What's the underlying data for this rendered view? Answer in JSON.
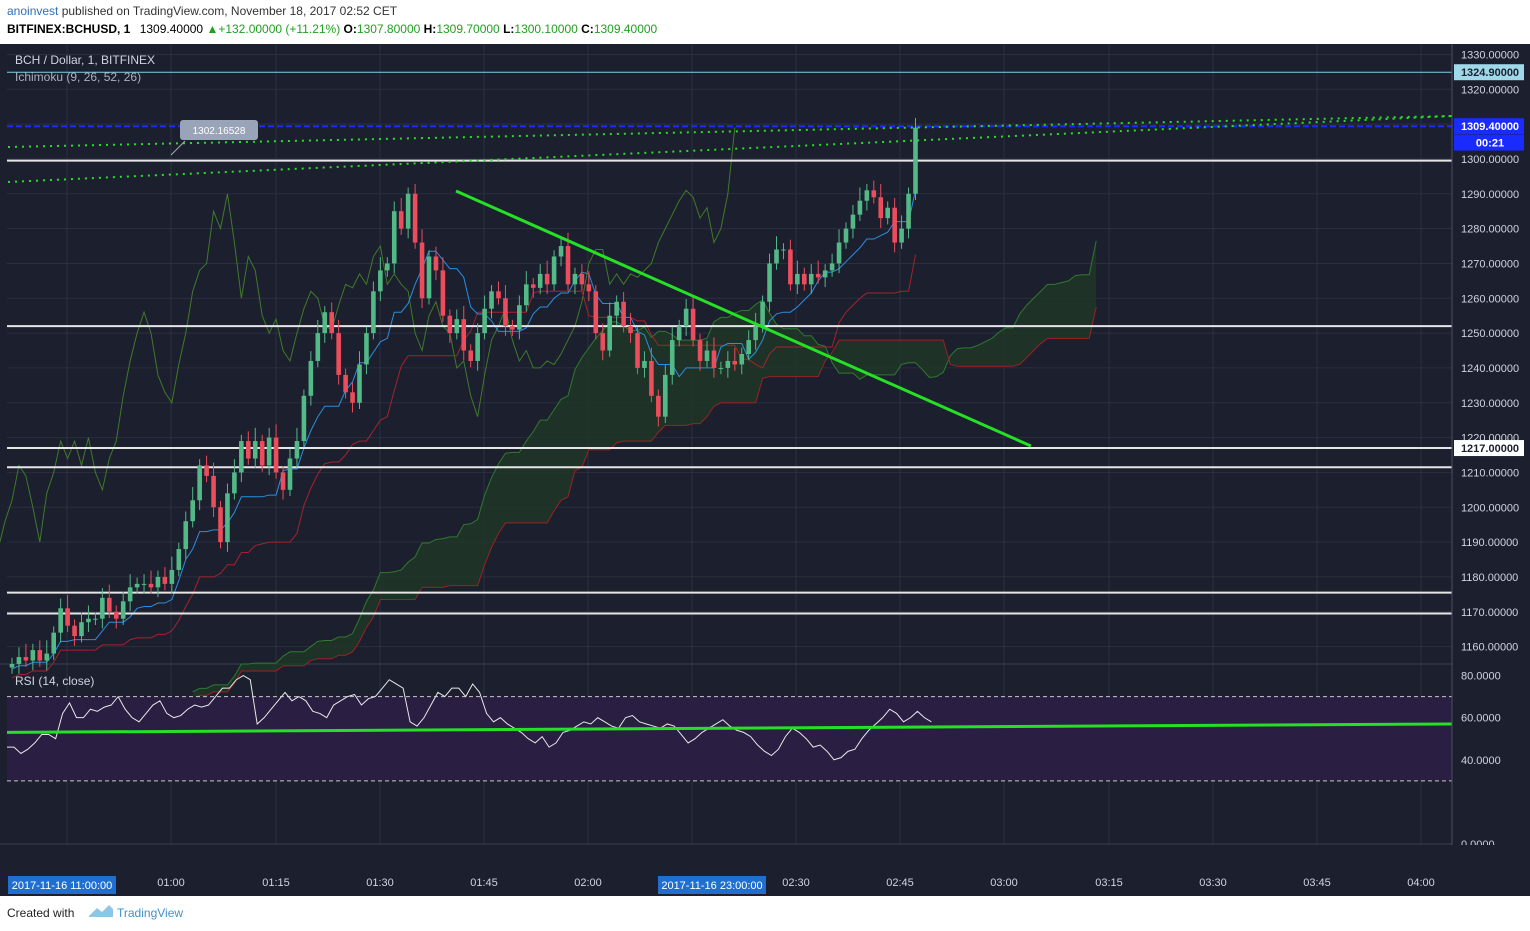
{
  "header": {
    "user": "anoinvest",
    "published": " published on TradingView.com, November 18, 2017 02:52 CET",
    "symbol": "BITFINEX:BCHUSD, 1",
    "last": "1309.40000",
    "change": "+132.00000 (+11.21%)",
    "o_label": "O:",
    "o": "1307.80000",
    "h_label": "H:",
    "h": "1309.70000",
    "l_label": "L:",
    "l": "1300.10000",
    "c_label": "C:",
    "c": "1309.40000"
  },
  "footer": {
    "created": "Created with",
    "brand": "TradingView"
  },
  "colors": {
    "background": "#1c1f2e",
    "grid": "#2b2f40",
    "bull": "#53b987",
    "bear": "#eb4d5c",
    "trend": "#26e026",
    "blue_line": "#1a2bff",
    "rsi_band": "#2a1e42"
  },
  "chart_data": [
    {
      "type": "candlestick",
      "title": "BCH / Dollar, 1, BITFINEX",
      "indicator": "Ichimoku (9, 26, 52, 26)",
      "price_axis": [
        "1330.00000",
        "1320.00000",
        "1310.00000",
        "1300.00000",
        "1290.00000",
        "1280.00000",
        "1270.00000",
        "1260.00000",
        "1250.00000",
        "1240.00000",
        "1230.00000",
        "1220.00000",
        "1210.00000",
        "1200.00000",
        "1190.00000",
        "1180.00000",
        "1170.00000",
        "1160.00000"
      ],
      "ylim": [
        1155,
        1333
      ],
      "time_axis": [
        "01:00",
        "01:15",
        "01:30",
        "01:45",
        "02:00",
        "02:30",
        "02:45",
        "03:00",
        "03:15",
        "03:30",
        "03:45",
        "04:00"
      ],
      "time_badges": [
        "2017-11-16 11:00:00",
        "2017-11-16 23:00:00"
      ],
      "axis_badges": {
        "level_1324": "1324.90000",
        "last_price": "1309.40000",
        "countdown": "00:21",
        "level_1217": "1217.00000"
      },
      "callout": "1302.16528",
      "horizontal_levels": [
        1324.9,
        1309.4,
        1299.5,
        1252,
        1217,
        1211.5,
        1175.5,
        1169.5
      ],
      "candles_close": [
        1155,
        1157,
        1156,
        1159,
        1156,
        1158,
        1164,
        1171,
        1166,
        1163,
        1167,
        1168,
        1168,
        1174,
        1170,
        1168,
        1173,
        1177,
        1178,
        1178,
        1177,
        1180,
        1178,
        1182,
        1188,
        1196,
        1202,
        1212,
        1209,
        1200,
        1190,
        1204,
        1210,
        1219,
        1214,
        1219,
        1212,
        1220,
        1210,
        1205,
        1214,
        1219,
        1232,
        1242,
        1250,
        1256,
        1250,
        1238,
        1233,
        1230,
        1241,
        1250,
        1262,
        1268,
        1270,
        1285,
        1280,
        1290,
        1276,
        1260,
        1272,
        1268,
        1255,
        1250,
        1254,
        1245,
        1242,
        1250,
        1257,
        1262,
        1260,
        1252,
        1251,
        1258,
        1264,
        1263,
        1267,
        1264,
        1272,
        1275,
        1264,
        1267,
        1264,
        1262,
        1250,
        1245,
        1255,
        1259,
        1252,
        1250,
        1240,
        1242,
        1232,
        1226,
        1238,
        1248,
        1252,
        1257,
        1248,
        1242,
        1245,
        1240,
        1240,
        1242,
        1241,
        1244,
        1248,
        1252,
        1259,
        1270,
        1274,
        1274,
        1264,
        1267,
        1264,
        1267,
        1266,
        1268,
        1270,
        1276,
        1280,
        1284,
        1288,
        1291,
        1289,
        1283,
        1286,
        1276,
        1280,
        1290,
        1309
      ]
    },
    {
      "type": "line",
      "title": "RSI (14, close)",
      "rsi_axis": [
        "80.0000",
        "60.0000",
        "40.0000",
        "0.0000"
      ],
      "ylim": [
        0,
        85
      ],
      "overbought": 70,
      "oversold": 30,
      "trend_line": {
        "from": 53,
        "to": 57
      },
      "values": [
        46,
        46,
        43,
        45,
        48,
        52,
        52,
        50,
        62,
        67,
        60,
        60,
        64,
        63,
        65,
        66,
        70,
        64,
        60,
        58,
        62,
        66,
        68,
        62,
        60,
        61,
        64,
        66,
        65,
        66,
        70,
        74,
        74,
        78,
        80,
        78,
        57,
        60,
        64,
        68,
        72,
        68,
        70,
        68,
        63,
        62,
        60,
        66,
        68,
        70,
        71,
        66,
        69,
        70,
        74,
        78,
        76,
        74,
        58,
        56,
        60,
        66,
        72,
        70,
        74,
        74,
        70,
        76,
        72,
        62,
        58,
        60,
        57,
        55,
        53,
        50,
        48,
        51,
        46,
        48,
        53,
        54,
        56,
        58,
        57,
        60,
        58,
        56,
        55,
        60,
        61,
        58,
        57,
        56,
        55,
        57,
        56,
        52,
        48,
        50,
        53,
        55,
        57,
        59,
        56,
        54,
        53,
        51,
        47,
        44,
        42,
        45,
        51,
        55,
        53,
        50,
        46,
        47,
        44,
        40,
        41,
        44,
        45,
        50,
        54,
        57,
        60,
        64,
        62,
        58,
        60,
        63,
        60,
        58
      ]
    }
  ]
}
